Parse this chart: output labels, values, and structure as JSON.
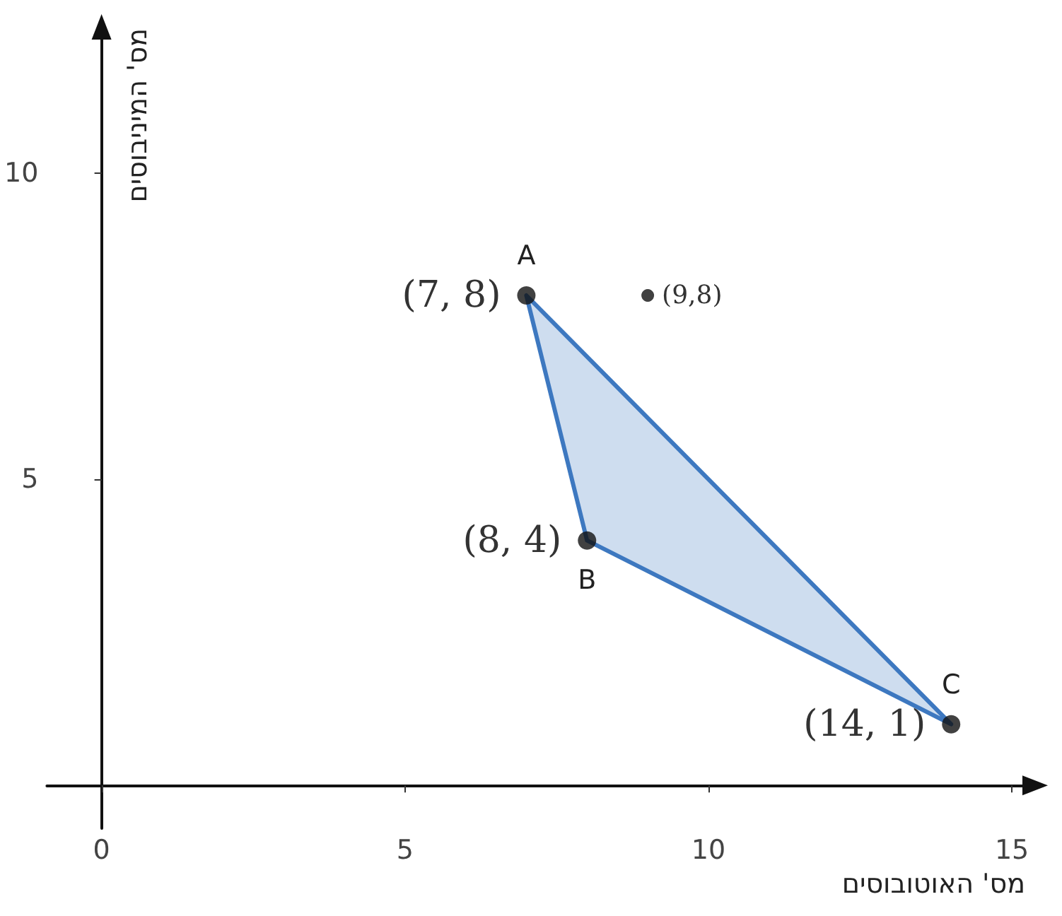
{
  "chart_data": {
    "type": "scatter",
    "xlabel": "מס' האוטובוסים",
    "ylabel": "מס' המיניבוסים",
    "xlim": [
      -0.9,
      15.5
    ],
    "ylim": [
      -0.7,
      12.5
    ],
    "xticks": [
      0,
      5,
      10,
      15
    ],
    "yticks": [
      5,
      10
    ],
    "grid": false,
    "line_style": "solid",
    "series": [
      {
        "type": "area",
        "color": "#3d78c0",
        "x": [
          7,
          8,
          14
        ],
        "values": [
          8,
          4,
          1
        ]
      },
      {
        "color": "#111111",
        "marker": "circle",
        "x": [
          7,
          8,
          14
        ],
        "values": [
          8,
          4,
          1
        ]
      },
      {
        "color": "#111111",
        "marker": "circle",
        "x": [
          9
        ],
        "values": [
          8
        ]
      }
    ],
    "annotations": [
      {
        "text": "A",
        "x": 7,
        "y": 8
      },
      {
        "text": "(7, 8)",
        "x": 7,
        "y": 8
      },
      {
        "text": "B",
        "x": 8,
        "y": 4
      },
      {
        "text": "(8, 4)",
        "x": 8,
        "y": 4
      },
      {
        "text": "C",
        "x": 14,
        "y": 1
      },
      {
        "text": "(14, 1)",
        "x": 14,
        "y": 1
      },
      {
        "text": "(9,8)",
        "x": 9,
        "y": 8
      }
    ]
  }
}
